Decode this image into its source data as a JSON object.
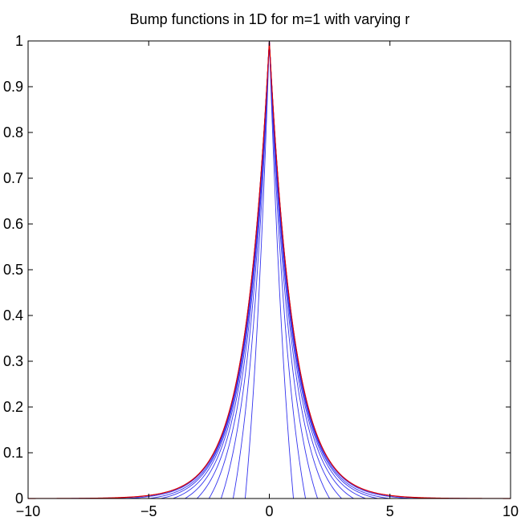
{
  "chart_data": {
    "type": "line",
    "title": "Bump functions in 1D for m=1 with varying r",
    "xlabel": "",
    "ylabel": "",
    "xlim": [
      -10,
      10
    ],
    "ylim": [
      0,
      1
    ],
    "x_ticks": [
      -10,
      -5,
      0,
      5,
      10
    ],
    "y_ticks": [
      0,
      0.1,
      0.2,
      0.3,
      0.4,
      0.5,
      0.6,
      0.7,
      0.8,
      0.9,
      1
    ],
    "x_tick_labels": [
      "−10",
      "−5",
      "0",
      "5",
      "10"
    ],
    "y_tick_labels": [
      "0",
      "0.1",
      "0.2",
      "0.3",
      "0.4",
      "0.5",
      "0.6",
      "0.7",
      "0.8",
      "0.9",
      "1"
    ],
    "grid": false,
    "legend": "none",
    "curve_family": {
      "color": "#3333ee",
      "description_of_shape": "peak 1 at x=0, each curve follows exp(-|x|) inside |x|<r and reaches 0 at |x|=r",
      "support_radii": [
        1,
        1.5,
        2,
        2.5,
        3,
        3.5,
        4,
        4.5,
        5,
        6,
        7.5,
        9.5
      ]
    },
    "limit_curve": {
      "color": "#dd0000",
      "peak": 1,
      "decay_rate": 1
    },
    "colors": {
      "axes": "#000000",
      "background": "#ffffff"
    }
  }
}
